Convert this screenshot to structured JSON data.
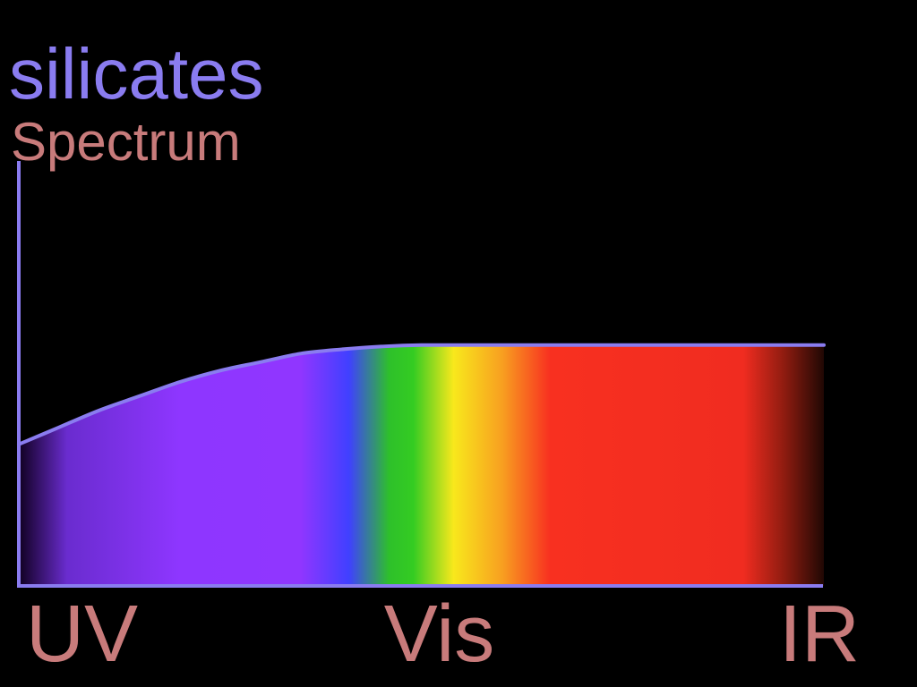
{
  "chart_data": {
    "type": "area",
    "title": "silicates",
    "subtitle": "Spectrum",
    "x_tick_labels": [
      "UV",
      "Vis",
      "IR"
    ],
    "x": [
      0.0,
      0.05,
      0.1,
      0.15,
      0.2,
      0.25,
      0.3,
      0.35,
      0.4,
      0.45,
      0.5,
      0.6,
      0.7,
      0.8,
      0.9,
      1.0
    ],
    "y": [
      0.5,
      0.56,
      0.62,
      0.67,
      0.72,
      0.76,
      0.79,
      0.82,
      0.835,
      0.845,
      0.85,
      0.85,
      0.85,
      0.85,
      0.85,
      0.85
    ],
    "xlim": [
      0,
      1
    ],
    "ylim": [
      0,
      1.5
    ],
    "grid": false,
    "legend": "none"
  },
  "colors": {
    "title": "#8a7cf0",
    "subtitle": "#c87b7b",
    "axis": "#8a7cf0",
    "tick_labels": "#c87b7b",
    "background": "#000000",
    "spectrum_stops": [
      {
        "at": 0.0,
        "color": "#100020"
      },
      {
        "at": 0.06,
        "color": "#6a2ccf"
      },
      {
        "at": 0.2,
        "color": "#8e36ff"
      },
      {
        "at": 0.35,
        "color": "#9036ff"
      },
      {
        "at": 0.41,
        "color": "#4040ff"
      },
      {
        "at": 0.46,
        "color": "#2ec02a"
      },
      {
        "at": 0.49,
        "color": "#34cc22"
      },
      {
        "at": 0.54,
        "color": "#f8e81c"
      },
      {
        "at": 0.6,
        "color": "#f8a020"
      },
      {
        "at": 0.66,
        "color": "#f83020"
      },
      {
        "at": 0.9,
        "color": "#f02c20"
      },
      {
        "at": 0.95,
        "color": "#901c10"
      },
      {
        "at": 1.0,
        "color": "#200804"
      }
    ]
  }
}
